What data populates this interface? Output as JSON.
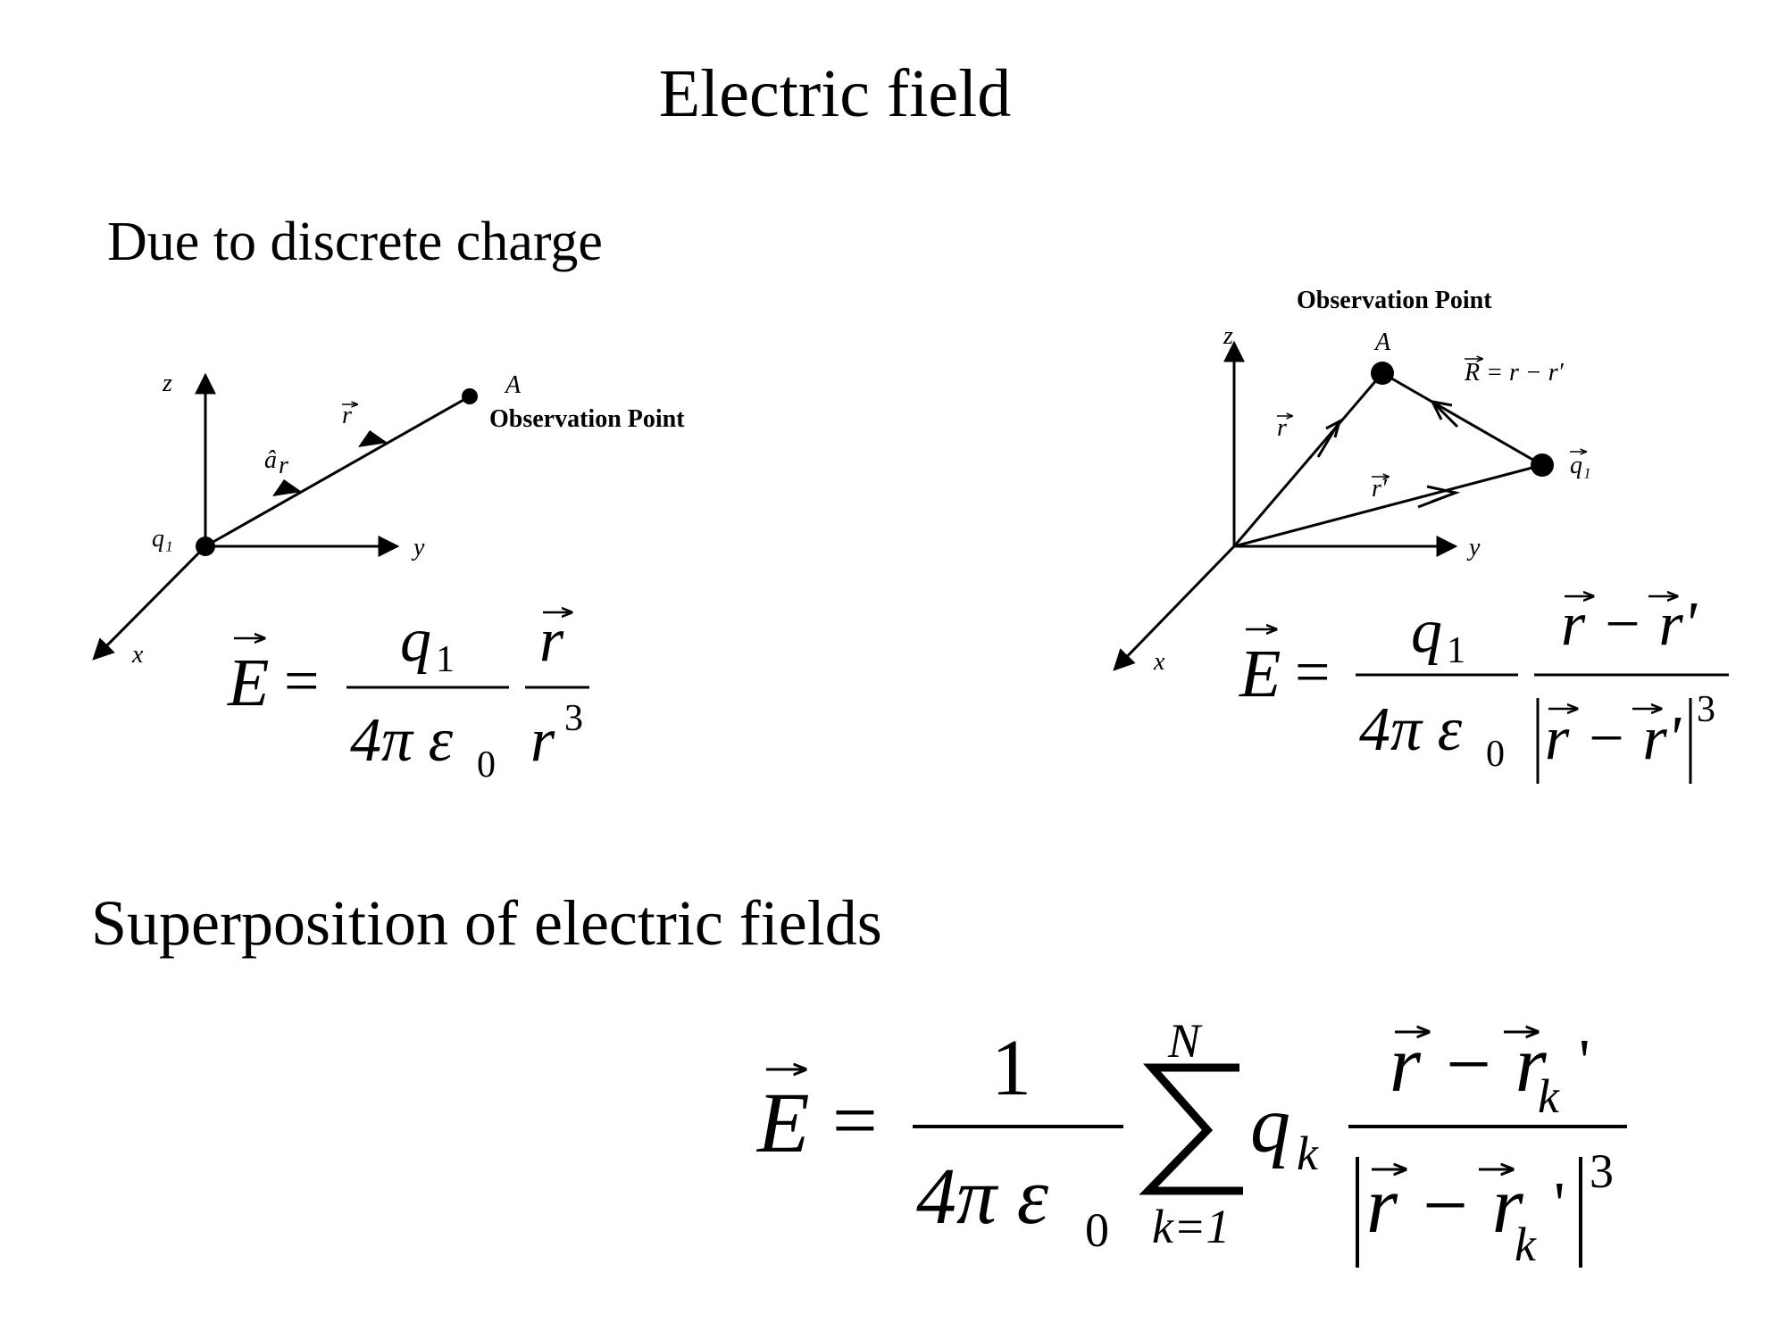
{
  "title": "Electric field",
  "section1": "Due to discrete charge",
  "section2": "Superposition of electric fields",
  "diagram_left": {
    "axis_z": "z",
    "axis_y": "y",
    "axis_x": "x",
    "charge": "q₁",
    "point": "A",
    "observation": "Observation Point",
    "vec_r": "r",
    "unit_vec": "â",
    "unit_sub": "r"
  },
  "diagram_right": {
    "axis_z": "z",
    "axis_y": "y",
    "axis_x": "x",
    "observation": "Observation Point",
    "point": "A",
    "R_def": "R = r − r′",
    "vec_r": "r",
    "vec_rp": "r′",
    "charge": "q₁"
  },
  "eq1": {
    "lhs": "E",
    "eq": "=",
    "num1": "q",
    "num1_sub": "1",
    "den1": "4π ε",
    "den1_sub": "0",
    "num2": "r",
    "den2": "r",
    "den2_sup": "3"
  },
  "eq2": {
    "lhs": "E",
    "eq": "=",
    "num1": "q",
    "num1_sub": "1",
    "den1": "4π ε",
    "den1_sub": "0",
    "num2": "r − r'",
    "den2": "r − r'",
    "den2_sup": "3"
  },
  "eq3": {
    "lhs": "E",
    "eq": "=",
    "num1": "1",
    "den1": "4π ε",
    "den1_sub": "0",
    "sum_top": "N",
    "sum_bottom": "k=1",
    "q": "q",
    "q_sub": "k",
    "num2": "r − r",
    "num2_sub": "k",
    "num2_prime": "'",
    "den2": "r − r",
    "den2_sub": "k",
    "den2_prime": "'",
    "den2_sup": "3"
  }
}
